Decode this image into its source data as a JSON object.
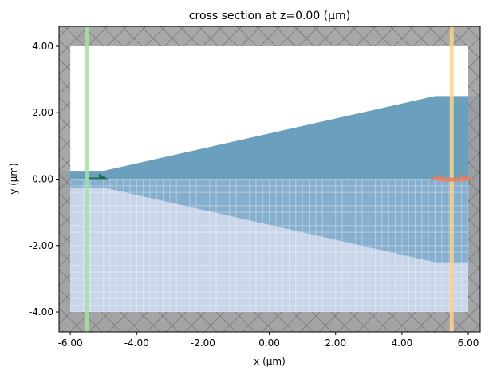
{
  "chart_data": {
    "type": "diagram-plot",
    "title": "cross section at z=0.00 (μm)",
    "xlabel": "x (μm)",
    "ylabel": "y (μm)",
    "xlim": [
      -6.34,
      6.36
    ],
    "ylim": [
      -4.6,
      4.6
    ],
    "xticks": [
      -6,
      -4,
      -2,
      0,
      2,
      4,
      6
    ],
    "xtick_labels": [
      "-6.00",
      "-4.00",
      "-2.00",
      "0.00",
      "2.00",
      "4.00",
      "6.00"
    ],
    "yticks": [
      -4,
      -2,
      0,
      2,
      4
    ],
    "ytick_labels": [
      "-4.00",
      "-2.00",
      "0.00",
      "2.00",
      "4.00"
    ],
    "grid": false,
    "substrate": {
      "x": [
        -6,
        6
      ],
      "y": [
        -4,
        0
      ],
      "color": "#c9d6ea",
      "mesh_spacing": 0.2
    },
    "taper": {
      "points": [
        [
          -6.34,
          0.25
        ],
        [
          -5,
          0.25
        ],
        [
          5,
          2.5
        ],
        [
          6.36,
          2.5
        ],
        [
          6.36,
          -2.5
        ],
        [
          5,
          -2.5
        ],
        [
          -5,
          -0.25
        ],
        [
          -6.34,
          -0.25
        ]
      ],
      "color": "#6a9fbe"
    },
    "pml": {
      "inner_x": [
        -6,
        6
      ],
      "inner_y": [
        -4,
        4
      ],
      "color": "#9e9e9e"
    },
    "monitors": [
      {
        "x": -5.5,
        "color": "#a6e3a1"
      },
      {
        "x": 5.5,
        "color": "#fbd48b"
      }
    ],
    "source": {
      "x": -5.5,
      "y": 0,
      "direction": "+x",
      "color": "#1b6e4e"
    },
    "mode_monitor_arrow": {
      "x": 5.5,
      "y": 0,
      "direction": "±x",
      "color": "#ee7a56"
    }
  }
}
